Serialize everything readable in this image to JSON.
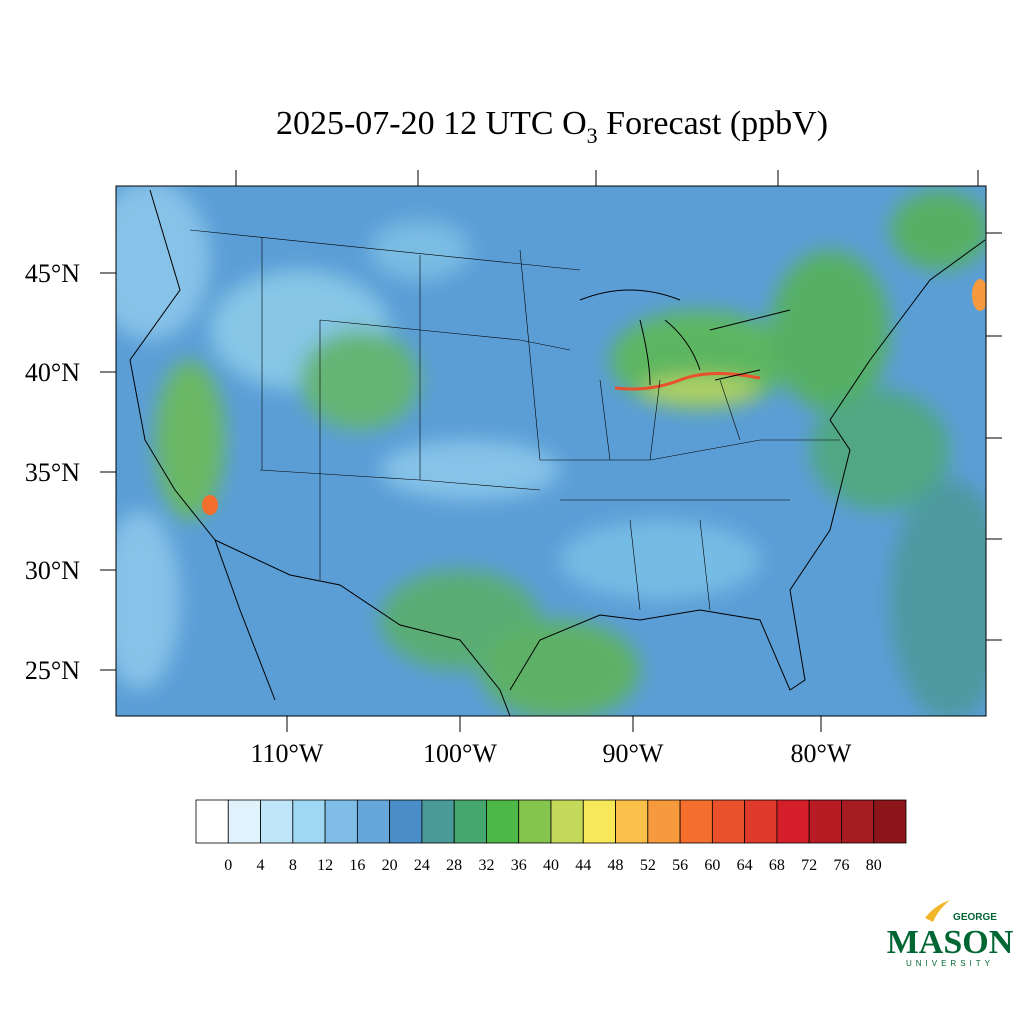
{
  "map": {
    "title": {
      "before": "2025-07-20 12 UTC O",
      "subscript": "3",
      "after": " Forecast (ppbV)"
    },
    "lat_ticks": [
      {
        "value": 45,
        "label": "45°N"
      },
      {
        "value": 40,
        "label": "40°N"
      },
      {
        "value": 35,
        "label": "35°N"
      },
      {
        "value": 30,
        "label": "30°N"
      },
      {
        "value": 25,
        "label": "25°N"
      }
    ],
    "lon_ticks": [
      {
        "value": -110,
        "label": "110°W"
      },
      {
        "value": -100,
        "label": "100°W"
      },
      {
        "value": -90,
        "label": "90°W"
      },
      {
        "value": -80,
        "label": "80°W"
      }
    ]
  },
  "colorbar": {
    "levels": [
      0,
      4,
      8,
      12,
      16,
      20,
      24,
      28,
      32,
      36,
      40,
      44,
      48,
      52,
      56,
      60,
      64,
      68,
      72,
      76,
      80
    ],
    "colors": [
      "#ffffff",
      "#e0f2fb",
      "#bfe6f8",
      "#9fd8f3",
      "#7fbde6",
      "#66a6d9",
      "#4a8ec9",
      "#4b9a9a",
      "#45a66e",
      "#4cb848",
      "#85c54d",
      "#c4d85a",
      "#f7e85a",
      "#f9c04a",
      "#f79a3d",
      "#f46e2d",
      "#e9512d",
      "#df3a2b",
      "#d41f2a",
      "#b71c24",
      "#a51b20",
      "#8c1519"
    ]
  },
  "logo": {
    "top": "GEORGE",
    "main": "MASON",
    "bottom": "UNIVERSITY"
  }
}
